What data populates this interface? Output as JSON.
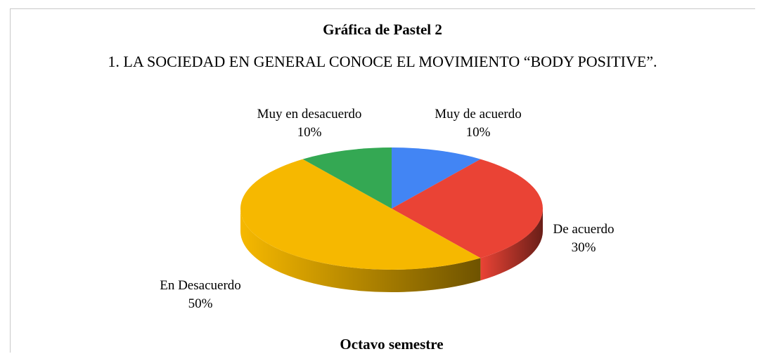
{
  "chart_data": {
    "type": "pie",
    "title": "Gráfica de Pastel 2",
    "subtitle": "1. LA SOCIEDAD EN GENERAL CONOCE EL MOVIMIENTO “BODY POSITIVE”.",
    "caption": "Octavo semestre",
    "categories": [
      "Muy de acuerdo",
      "De acuerdo",
      "En Desacuerdo",
      "Muy en desacuerdo"
    ],
    "values": [
      10,
      30,
      50,
      10
    ],
    "value_labels": [
      "10%",
      "30%",
      "50%",
      "10%"
    ],
    "colors": [
      "#4285f4",
      "#ea4335",
      "#f6b800",
      "#34a853"
    ]
  }
}
